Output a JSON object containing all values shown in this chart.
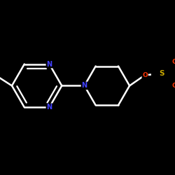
{
  "background_color": "#000000",
  "bond_color": "#ffffff",
  "N_color": "#4040ff",
  "O_color": "#ff3300",
  "S_color": "#ccaa00",
  "figsize": [
    2.5,
    2.5
  ],
  "dpi": 100,
  "bond_lw": 1.8,
  "font_size_N": 7,
  "font_size_OS": 6.5,
  "xlim": [
    -1.0,
    1.55
  ],
  "ylim": [
    -1.1,
    1.0
  ]
}
